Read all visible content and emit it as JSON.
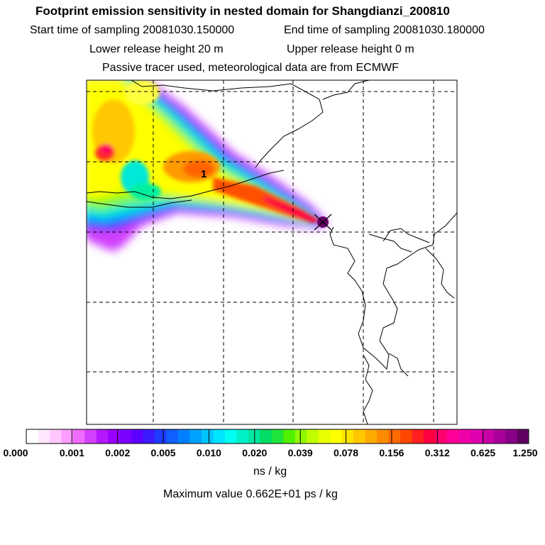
{
  "header": {
    "title": "Footprint emission sensitivity in nested domain for Shangdianzi_200810",
    "start_time": "Start time of sampling 20081030.150000",
    "end_time": "End time of sampling 20081030.180000",
    "lower_release": "Lower release height   20 m",
    "upper_release": "Upper release height    0 m",
    "tracer_info": "Passive tracer used, meteorological data are from ECMWF"
  },
  "map": {
    "marker_label": "1",
    "station_symbol": "x-mark"
  },
  "colorbar": {
    "tick_labels": [
      "0.000",
      "0.001",
      "0.002",
      "0.005",
      "0.010",
      "0.020",
      "0.039",
      "0.078",
      "0.156",
      "0.312",
      "0.625",
      "1.250"
    ],
    "colors": [
      "#ffffff",
      "#ffe8ff",
      "#ffc8ff",
      "#ff9cff",
      "#f06cff",
      "#d440ff",
      "#b418ff",
      "#9a00ff",
      "#7c00ff",
      "#5c00ff",
      "#3a1aff",
      "#1e3cff",
      "#1060ff",
      "#0080ff",
      "#00a2ff",
      "#00c4ff",
      "#00e4ff",
      "#00fff0",
      "#00f0c8",
      "#00e6a0",
      "#00dc64",
      "#20e43c",
      "#50f000",
      "#90f800",
      "#c0ff00",
      "#e8ff00",
      "#ffff00",
      "#ffe400",
      "#ffc800",
      "#ffaa00",
      "#ff8c00",
      "#ff6a00",
      "#ff4600",
      "#ff2020",
      "#ff0040",
      "#ff0070",
      "#ff0098",
      "#f000a8",
      "#e000b0",
      "#c800a8",
      "#a80098",
      "#880088",
      "#600060"
    ],
    "unit": "ns / kg",
    "max_value": "Maximum value  0.662E+01 ps / kg"
  }
}
